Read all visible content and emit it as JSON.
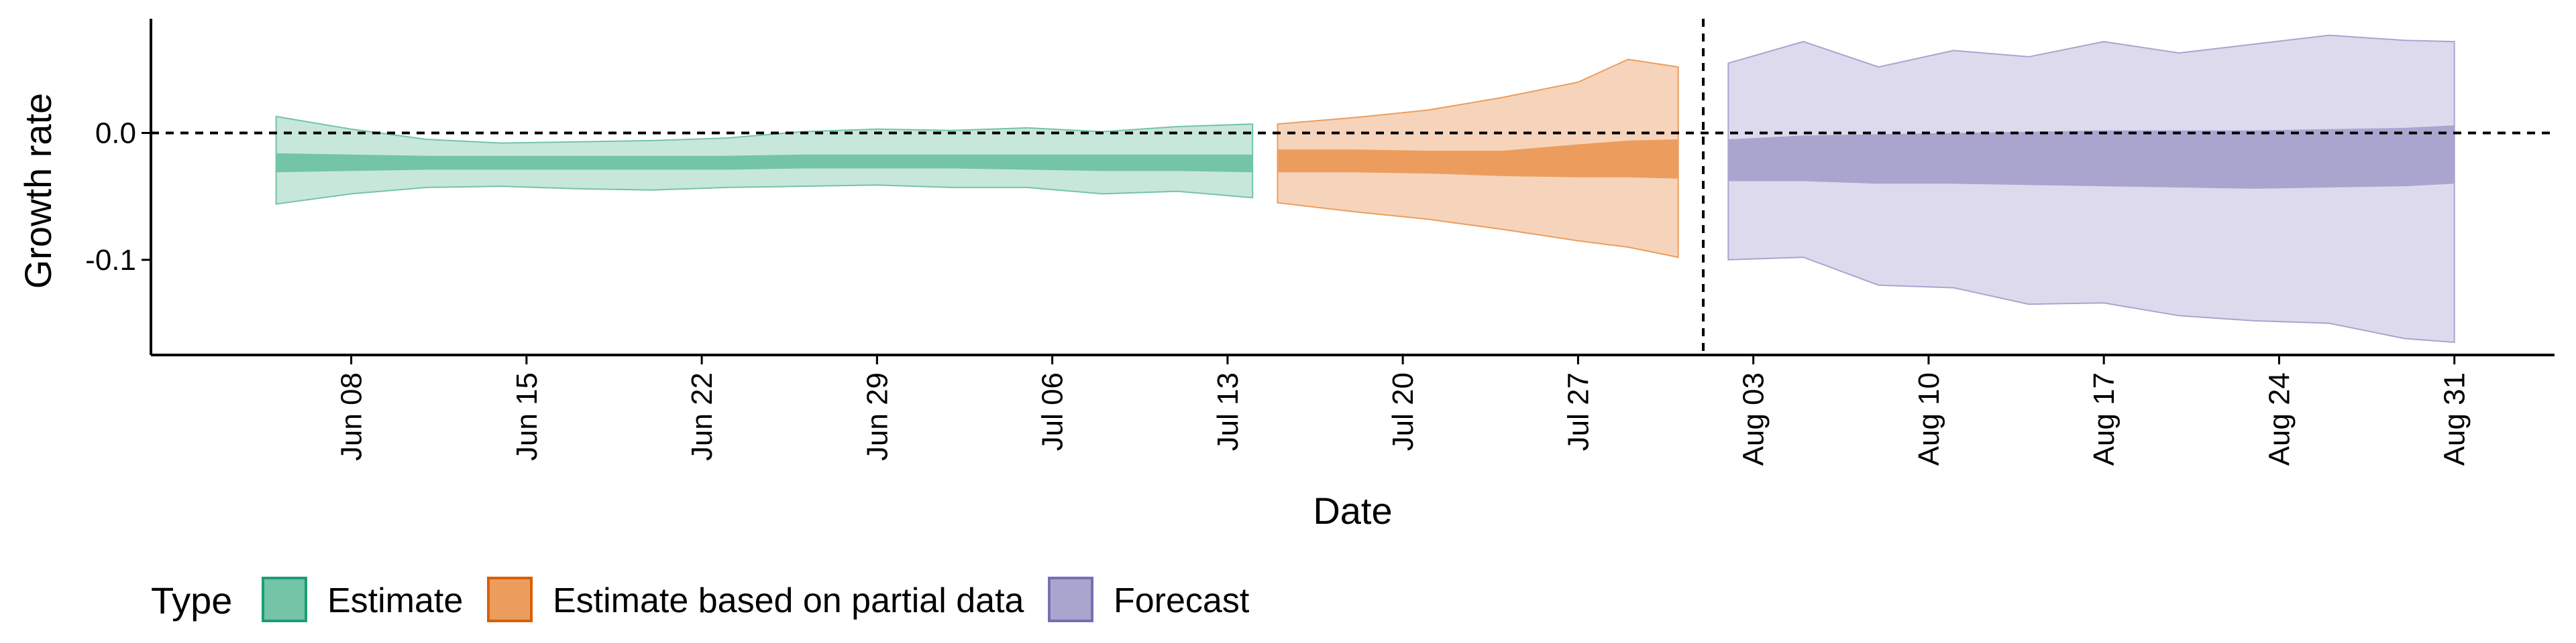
{
  "chart_data": {
    "type": "area",
    "xlabel": "Date",
    "ylabel": "Growth rate",
    "ylim": [
      -0.175,
      0.09
    ],
    "y_ticks": [
      {
        "value": 0.0,
        "label": "0.0"
      },
      {
        "value": -0.1,
        "label": "-0.1"
      }
    ],
    "x_range": [
      "2020-05-31",
      "2020-09-04"
    ],
    "x_ticks": [
      {
        "date": "2020-06-08",
        "label": "Jun 08"
      },
      {
        "date": "2020-06-15",
        "label": "Jun 15"
      },
      {
        "date": "2020-06-22",
        "label": "Jun 22"
      },
      {
        "date": "2020-06-29",
        "label": "Jun 29"
      },
      {
        "date": "2020-07-06",
        "label": "Jul 06"
      },
      {
        "date": "2020-07-13",
        "label": "Jul 13"
      },
      {
        "date": "2020-07-20",
        "label": "Jul 20"
      },
      {
        "date": "2020-07-27",
        "label": "Jul 27"
      },
      {
        "date": "2020-08-03",
        "label": "Aug 03"
      },
      {
        "date": "2020-08-10",
        "label": "Aug 10"
      },
      {
        "date": "2020-08-17",
        "label": "Aug 17"
      },
      {
        "date": "2020-08-24",
        "label": "Aug 24"
      },
      {
        "date": "2020-08-31",
        "label": "Aug 31"
      }
    ],
    "reference_lines": {
      "horizontal_y": 0.0,
      "vertical_date": "2020-08-01",
      "style": "dashed"
    },
    "grid": false,
    "legend": {
      "title": "Type",
      "position": "bottom-left",
      "entries": [
        {
          "label": "Estimate",
          "fill": "#74c4a8",
          "stroke": "#1b9e77"
        },
        {
          "label": "Estimate based on partial data",
          "fill": "#ec9d5e",
          "stroke": "#d95f02"
        },
        {
          "label": "Forecast",
          "fill": "#a9a5cf",
          "stroke": "#7570b3"
        }
      ]
    },
    "series": [
      {
        "name": "Estimate",
        "outer_color": "#c7e7da",
        "outer_stroke": "#74c4a8",
        "inner_color": "#74c4a8",
        "x": [
          "2020-06-05",
          "2020-06-08",
          "2020-06-11",
          "2020-06-14",
          "2020-06-17",
          "2020-06-20",
          "2020-06-23",
          "2020-06-26",
          "2020-06-29",
          "2020-07-02",
          "2020-07-05",
          "2020-07-08",
          "2020-07-11",
          "2020-07-14"
        ],
        "outer_upper": [
          0.013,
          0.003,
          -0.005,
          -0.008,
          -0.007,
          -0.006,
          -0.004,
          0.001,
          0.003,
          0.002,
          0.004,
          0.001,
          0.005,
          0.007
        ],
        "outer_lower": [
          -0.056,
          -0.048,
          -0.043,
          -0.042,
          -0.044,
          -0.045,
          -0.043,
          -0.042,
          -0.041,
          -0.043,
          -0.043,
          -0.048,
          -0.046,
          -0.051
        ],
        "inner_upper": [
          -0.016,
          -0.017,
          -0.018,
          -0.018,
          -0.018,
          -0.018,
          -0.018,
          -0.017,
          -0.017,
          -0.017,
          -0.017,
          -0.017,
          -0.017,
          -0.017
        ],
        "inner_lower": [
          -0.031,
          -0.03,
          -0.029,
          -0.029,
          -0.029,
          -0.029,
          -0.029,
          -0.028,
          -0.028,
          -0.028,
          -0.029,
          -0.03,
          -0.03,
          -0.031
        ]
      },
      {
        "name": "Estimate based on partial data",
        "outer_color": "#f6d4bb",
        "outer_stroke": "#ec9d5e",
        "inner_color": "#ec9d5e",
        "x": [
          "2020-07-15",
          "2020-07-18",
          "2020-07-21",
          "2020-07-24",
          "2020-07-27",
          "2020-07-29",
          "2020-07-31"
        ],
        "outer_upper": [
          0.007,
          0.012,
          0.018,
          0.028,
          0.04,
          0.058,
          0.052
        ],
        "outer_lower": [
          -0.055,
          -0.062,
          -0.068,
          -0.076,
          -0.085,
          -0.09,
          -0.098
        ],
        "inner_upper": [
          -0.013,
          -0.013,
          -0.014,
          -0.014,
          -0.009,
          -0.006,
          -0.005
        ],
        "inner_lower": [
          -0.031,
          -0.031,
          -0.032,
          -0.034,
          -0.035,
          -0.035,
          -0.036
        ]
      },
      {
        "name": "Forecast",
        "outer_color": "#dcdaec",
        "outer_stroke": "#a9a5cf",
        "inner_color": "#a9a5cf",
        "x": [
          "2020-08-02",
          "2020-08-05",
          "2020-08-08",
          "2020-08-11",
          "2020-08-14",
          "2020-08-17",
          "2020-08-20",
          "2020-08-23",
          "2020-08-26",
          "2020-08-29",
          "2020-08-31"
        ],
        "outer_upper": [
          0.055,
          0.072,
          0.052,
          0.065,
          0.06,
          0.072,
          0.063,
          0.07,
          0.077,
          0.073,
          0.072
        ],
        "outer_lower": [
          -0.1,
          -0.098,
          -0.12,
          -0.122,
          -0.135,
          -0.134,
          -0.144,
          -0.148,
          -0.15,
          -0.162,
          -0.165
        ],
        "inner_upper": [
          -0.005,
          -0.002,
          -0.001,
          0.0,
          0.001,
          0.002,
          0.002,
          0.002,
          0.003,
          0.004,
          0.006
        ],
        "inner_lower": [
          -0.038,
          -0.038,
          -0.04,
          -0.04,
          -0.041,
          -0.042,
          -0.043,
          -0.044,
          -0.043,
          -0.042,
          -0.04
        ]
      }
    ]
  }
}
